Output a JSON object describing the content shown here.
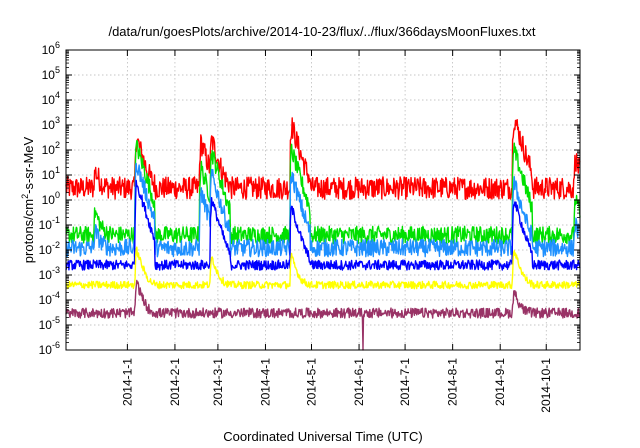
{
  "chart_data": {
    "type": "line",
    "title": "/data/run/goesPlots/archive/2014-10-23/flux/../flux/366daysMoonFluxes.txt",
    "xlabel": "Coordinated Universal Time (UTC)",
    "ylabel": "protons/cm2-s-sr-MeV",
    "ylabel_parts": {
      "pre": "protons/cm",
      "sup": "2",
      "post": "-s-sr-MeV"
    },
    "yscale": "log",
    "ylim": [
      1e-06,
      1000000.0
    ],
    "xlim": [
      "2013-11-22",
      "2014-10-23"
    ],
    "grid": true,
    "y_ticks": [
      {
        "base": "10",
        "exp": "-6",
        "value": 1e-06
      },
      {
        "base": "10",
        "exp": "-5",
        "value": 1e-05
      },
      {
        "base": "10",
        "exp": "-4",
        "value": 0.0001
      },
      {
        "base": "10",
        "exp": "-3",
        "value": 0.001
      },
      {
        "base": "10",
        "exp": "-2",
        "value": 0.01
      },
      {
        "base": "10",
        "exp": "-1",
        "value": 0.1
      },
      {
        "base": "10",
        "exp": "0",
        "value": 1
      },
      {
        "base": "10",
        "exp": "1",
        "value": 10
      },
      {
        "base": "10",
        "exp": "2",
        "value": 100
      },
      {
        "base": "10",
        "exp": "3",
        "value": 1000
      },
      {
        "base": "10",
        "exp": "4",
        "value": 10000
      },
      {
        "base": "10",
        "exp": "5",
        "value": 100000
      },
      {
        "base": "10",
        "exp": "6",
        "value": 1000000
      }
    ],
    "x_ticks": [
      "2014-1-1",
      "2014-2-1",
      "2014-3-1",
      "2014-4-1",
      "2014-5-1",
      "2014-6-1",
      "2014-7-1",
      "2014-8-1",
      "2014-9-1",
      "2014-10-1"
    ],
    "x_tick_dates": [
      "2014-01-01",
      "2014-02-01",
      "2014-03-01",
      "2014-04-01",
      "2014-05-01",
      "2014-06-01",
      "2014-07-01",
      "2014-08-01",
      "2014-09-01",
      "2014-10-01"
    ],
    "series": [
      {
        "color": "#ff0000",
        "base": 3.0,
        "noise": 0.45,
        "events": [
          {
            "date": "2013-12-11",
            "peak": 12
          },
          {
            "date": "2014-01-07",
            "peak": 300
          },
          {
            "date": "2014-02-18",
            "peak": 200
          },
          {
            "date": "2014-02-25",
            "peak": 250
          },
          {
            "date": "2014-04-18",
            "peak": 1000
          },
          {
            "date": "2014-09-10",
            "peak": 2000
          },
          {
            "date": "2014-10-20",
            "peak": 40
          }
        ]
      },
      {
        "color": "#00e000",
        "base": 0.04,
        "noise": 0.35,
        "events": [
          {
            "date": "2013-12-11",
            "peak": 0.3
          },
          {
            "date": "2014-01-07",
            "peak": 150
          },
          {
            "date": "2014-02-18",
            "peak": 20
          },
          {
            "date": "2014-02-25",
            "peak": 80
          },
          {
            "date": "2014-04-18",
            "peak": 100
          },
          {
            "date": "2014-09-10",
            "peak": 100
          },
          {
            "date": "2014-10-20",
            "peak": 1
          }
        ]
      },
      {
        "color": "#1e90ff",
        "base": 0.012,
        "noise": 0.35,
        "events": [
          {
            "date": "2013-12-11",
            "peak": 0.05
          },
          {
            "date": "2014-01-07",
            "peak": 30
          },
          {
            "date": "2014-02-18",
            "peak": 2
          },
          {
            "date": "2014-02-25",
            "peak": 10
          },
          {
            "date": "2014-04-18",
            "peak": 10
          },
          {
            "date": "2014-09-10",
            "peak": 5
          },
          {
            "date": "2014-10-20",
            "peak": 0.1
          }
        ]
      },
      {
        "color": "#0000ff",
        "base": 0.0025,
        "noise": 0.2,
        "events": [
          {
            "date": "2014-01-07",
            "peak": 5
          },
          {
            "date": "2014-02-25",
            "peak": 1
          },
          {
            "date": "2014-04-18",
            "peak": 0.5
          },
          {
            "date": "2014-09-10",
            "peak": 1
          }
        ]
      },
      {
        "color": "#ffff00",
        "base": 0.0004,
        "noise": 0.15,
        "events": [
          {
            "date": "2014-01-07",
            "peak": 0.01
          },
          {
            "date": "2014-02-25",
            "peak": 0.005
          },
          {
            "date": "2014-04-18",
            "peak": 0.005
          },
          {
            "date": "2014-09-10",
            "peak": 0.01
          }
        ]
      },
      {
        "color": "#993366",
        "base": 3e-05,
        "noise": 0.2,
        "events": [
          {
            "date": "2014-01-07",
            "peak": 0.0005
          },
          {
            "date": "2014-09-10",
            "peak": 0.0002
          }
        ]
      }
    ]
  }
}
